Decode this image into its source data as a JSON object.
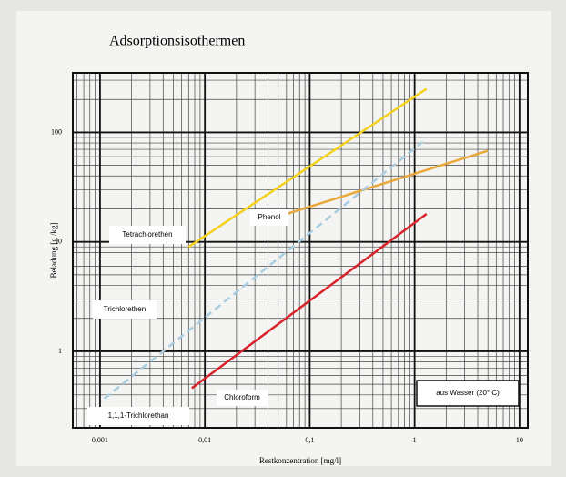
{
  "chart_data": {
    "type": "line",
    "title": "Adsorptionsisothermen",
    "x_label": "Restkonzentration [mg/l]",
    "y_label": "Beladung [g /kg]",
    "xscale": "log",
    "yscale": "log",
    "xlim": [
      0.00055,
      12
    ],
    "ylim": [
      0.2,
      350
    ],
    "xticks": [
      {
        "value": 0.001,
        "label": "0,001"
      },
      {
        "value": 0.01,
        "label": "0,01"
      },
      {
        "value": 0.1,
        "label": "0,1"
      },
      1,
      10
    ],
    "yticks": [
      1,
      10,
      100
    ],
    "grid": true,
    "minor_grid": true,
    "series": [
      {
        "name": "Tetrachlorethen",
        "color": "#f2d21e",
        "style": "solid",
        "x": [
          0.007,
          1.3
        ],
        "values": [
          9,
          250
        ]
      },
      {
        "name": "Phenol",
        "color": "#e8a83a",
        "style": "solid",
        "x": [
          0.05,
          5
        ],
        "values": [
          17,
          68
        ]
      },
      {
        "name": "Trichlorethen",
        "color": "#a9cde0",
        "style": "dashed",
        "x": [
          0.0011,
          1.2
        ],
        "values": [
          0.37,
          82
        ]
      },
      {
        "name": "Chloroform",
        "color": "#d8232a",
        "style": "solid",
        "x": [
          0.0075,
          1.3
        ],
        "values": [
          0.46,
          18
        ]
      }
    ],
    "annotations": [
      "1,1,1-Trichlorethan",
      "aus Wasser (20° C)"
    ]
  }
}
